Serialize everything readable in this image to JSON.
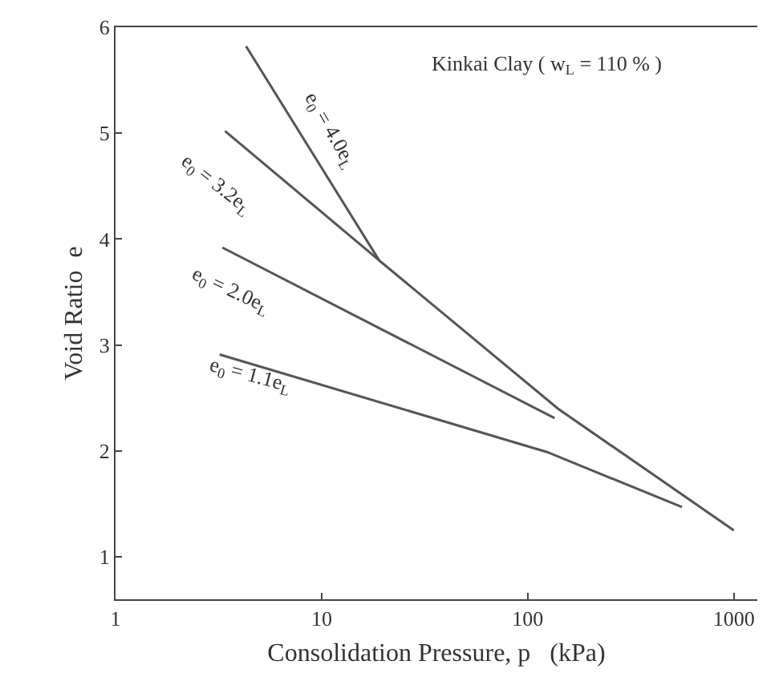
{
  "chart_data": {
    "type": "line",
    "xlabel": "Consolidation Pressure, p   (kPa)",
    "ylabel": "Void Ratio  e",
    "log": "x",
    "xlim": [
      1,
      1300
    ],
    "xticks": [
      1,
      10,
      100,
      1000
    ],
    "ylim": [
      0.6,
      6
    ],
    "yticks": [
      1,
      2,
      3,
      4,
      5,
      6
    ],
    "grid": false,
    "marker": "none",
    "line_style": "solid",
    "series": [
      {
        "color": "#555555",
        "x": [
          4.3,
          19,
          140,
          1000
        ],
        "values": [
          5.82,
          3.8,
          2.4,
          1.25
        ]
      },
      {
        "color": "#555555",
        "x": [
          3.4,
          19
        ],
        "values": [
          5.02,
          3.8
        ]
      },
      {
        "color": "#555555",
        "x": [
          3.3,
          135
        ],
        "values": [
          3.92,
          2.31
        ]
      },
      {
        "color": "#555555",
        "x": [
          3.2,
          124,
          560
        ],
        "values": [
          2.91,
          1.99,
          1.47
        ]
      }
    ],
    "annotations": [
      "e$_{0}$ = 4.0e$_{L}$",
      "e$_{0}$ = 3.2e$_{L}$",
      "e$_{0}$ = 2.0e$_{L}$",
      "e$_{0}$ = 1.1e$_{L}$",
      "Kinkai Clay ( w$_{L}$ = 110 % )"
    ]
  }
}
